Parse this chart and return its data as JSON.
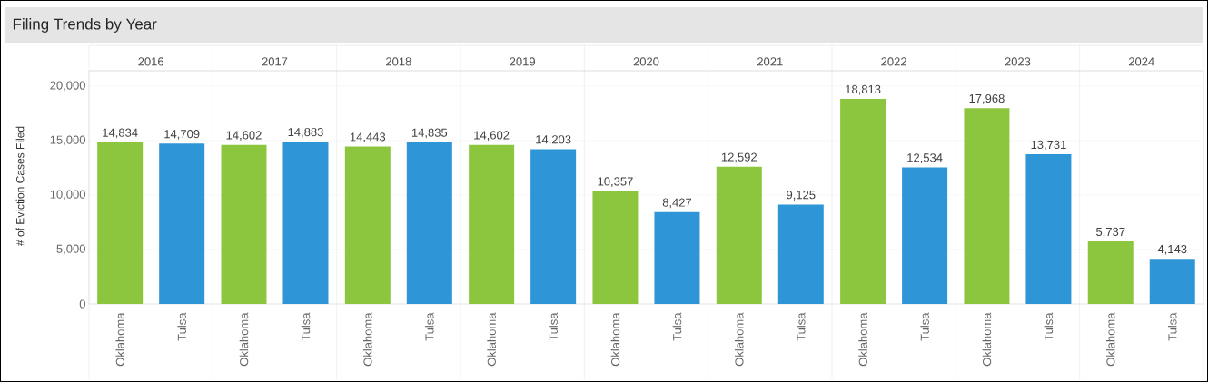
{
  "chart_data": {
    "type": "bar",
    "title": "Filing Trends by Year",
    "ylabel": "# of Eviction Cases Filed",
    "categories": [
      "2016",
      "2017",
      "2018",
      "2019",
      "2020",
      "2021",
      "2022",
      "2023",
      "2024"
    ],
    "series": [
      {
        "name": "Oklahoma",
        "color": "#8cc63f",
        "values": [
          14834,
          14602,
          14443,
          14602,
          10357,
          12592,
          18813,
          17968,
          5737
        ],
        "value_labels": [
          "14,834",
          "14,602",
          "14,443",
          "14,602",
          "10,357",
          "12,592",
          "18,813",
          "17,968",
          "5,737"
        ]
      },
      {
        "name": "Tulsa",
        "color": "#2e96d6",
        "values": [
          14709,
          14883,
          14835,
          14203,
          8427,
          9125,
          12534,
          13731,
          4143
        ],
        "value_labels": [
          "14,709",
          "14,883",
          "14,835",
          "14,203",
          "8,427",
          "9,125",
          "12,534",
          "13,731",
          "4,143"
        ]
      }
    ],
    "ylim": [
      0,
      21400
    ],
    "yticks": [
      {
        "value": 0,
        "label": "0"
      },
      {
        "value": 5000,
        "label": "5,000"
      },
      {
        "value": 10000,
        "label": "10,000"
      },
      {
        "value": 15000,
        "label": "15,000"
      },
      {
        "value": 20000,
        "label": "20,000"
      }
    ],
    "grid": "y"
  }
}
